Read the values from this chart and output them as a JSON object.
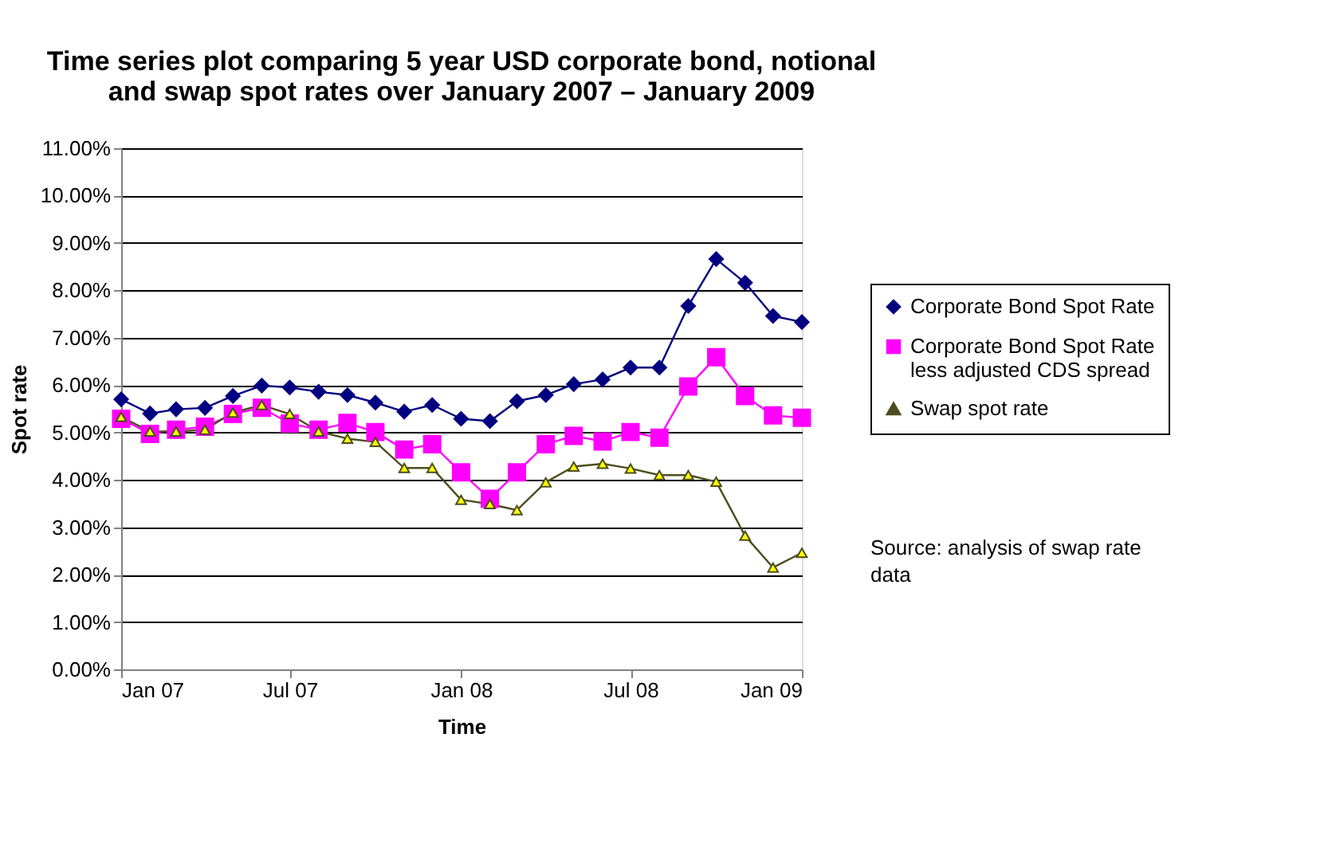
{
  "chart_data": {
    "type": "line",
    "title": "Time series plot comparing 5 year USD corporate bond, notional and swap spot rates over January 2007 – January 2009",
    "xlabel": "Time",
    "ylabel": "Spot rate",
    "x": [
      "2007-01",
      "2007-02",
      "2007-03",
      "2007-04",
      "2007-05",
      "2007-06",
      "2007-07",
      "2007-08",
      "2007-09",
      "2007-10",
      "2007-11",
      "2007-12",
      "2008-01",
      "2008-02",
      "2008-03",
      "2008-04",
      "2008-05",
      "2008-06",
      "2008-07",
      "2008-08",
      "2008-09",
      "2008-10",
      "2008-11",
      "2008-12",
      "2009-01"
    ],
    "series": [
      {
        "name": "Corporate Bond Spot Rate",
        "color": "#000080",
        "marker": "diamond",
        "values": [
          5.7,
          5.4,
          5.49,
          5.52,
          5.77,
          5.99,
          5.95,
          5.86,
          5.79,
          5.63,
          5.44,
          5.58,
          5.29,
          5.24,
          5.66,
          5.79,
          6.02,
          6.12,
          6.37,
          6.37,
          7.67,
          8.66,
          8.16,
          7.46,
          7.33
        ]
      },
      {
        "name": "Corporate Bond Spot Rate less adjusted CDS spread",
        "color": "#ff00ff",
        "marker": "square",
        "values": [
          5.29,
          4.97,
          5.06,
          5.12,
          5.39,
          5.52,
          5.19,
          5.06,
          5.2,
          5.01,
          4.64,
          4.75,
          4.16,
          3.6,
          4.16,
          4.75,
          4.93,
          4.81,
          5.01,
          4.89,
          5.97,
          6.59,
          5.77,
          5.36,
          5.31
        ]
      },
      {
        "name": "Swap spot rate",
        "color": "#4d4d1f",
        "marker": "triangle",
        "values": [
          5.33,
          5.02,
          5.02,
          5.06,
          5.42,
          5.58,
          5.39,
          5.02,
          4.87,
          4.8,
          4.25,
          4.25,
          3.58,
          3.49,
          3.36,
          3.95,
          4.28,
          4.34,
          4.24,
          4.1,
          4.1,
          3.96,
          2.82,
          2.15,
          2.46
        ]
      }
    ],
    "xlim": [
      "2007-01",
      "2009-01"
    ],
    "xticks": [
      {
        "value": "2007-01",
        "label": "Jan 07"
      },
      {
        "value": "2007-07",
        "label": "Jul 07"
      },
      {
        "value": "2008-01",
        "label": "Jan 08"
      },
      {
        "value": "2008-07",
        "label": "Jul 08"
      },
      {
        "value": "2009-01",
        "label": "Jan 09"
      }
    ],
    "ylim": [
      0,
      11
    ],
    "yticks": [
      {
        "value": 0,
        "label": "0.00%"
      },
      {
        "value": 1,
        "label": "1.00%"
      },
      {
        "value": 2,
        "label": "2.00%"
      },
      {
        "value": 3,
        "label": "3.00%"
      },
      {
        "value": 4,
        "label": "4.00%"
      },
      {
        "value": 5,
        "label": "5.00%"
      },
      {
        "value": 6,
        "label": "6.00%"
      },
      {
        "value": 7,
        "label": "7.00%"
      },
      {
        "value": 8,
        "label": "8.00%"
      },
      {
        "value": 9,
        "label": "9.00%"
      },
      {
        "value": 10,
        "label": "10.00%"
      },
      {
        "value": 11,
        "label": "11.00%"
      }
    ],
    "grid": "y",
    "legend": "right",
    "line_style": "solid",
    "annotations": [
      "Source: analysis of swap rate data"
    ]
  }
}
